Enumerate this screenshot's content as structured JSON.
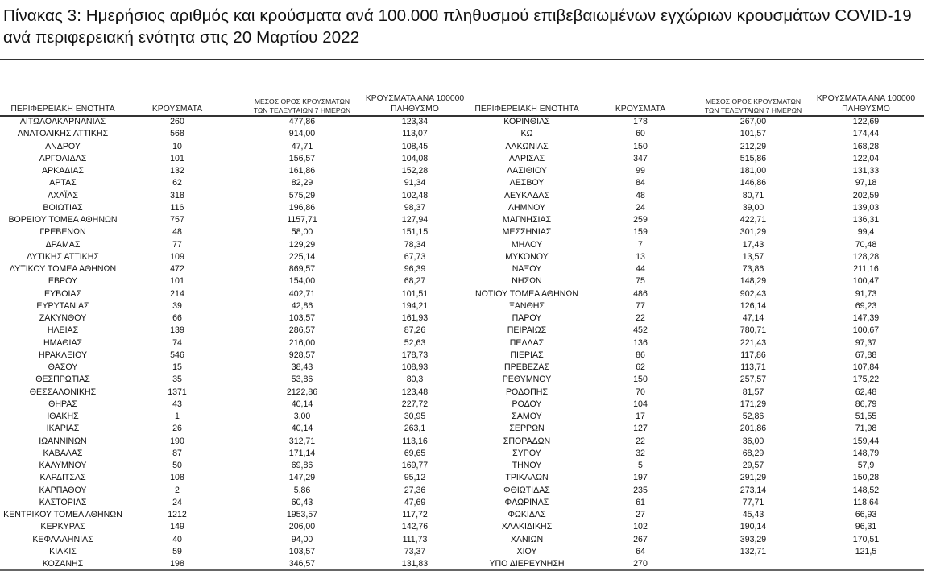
{
  "title": "Πίνακας 3:  Ημερήσιος αριθμός και κρούσματα ανά 100.000 πληθυσμού επιβεβαιωμένων εγχώριων κρουσμάτων COVID-19 ανά περιφερειακή ενότητα στις 20 Μαρτίου 2022",
  "headers": {
    "region": "ΠΕΡΙΦΕΡΕΙΑΚΗ ΕΝΟΤΗΤΑ",
    "cases": "ΚΡΟΥΣΜΑΤΑ",
    "avg_line1": "ΜΕΣΟΣ ΟΡΟΣ ΚΡΟΥΣΜΑΤΩΝ",
    "avg_line2": "ΤΩΝ ΤΕΛΕΥΤΑΙΩΝ 7 ΗΜΕΡΩΝ",
    "per100k_line1": "ΚΡΟΥΣΜΑΤΑ ΑΝΑ 100000",
    "per100k_line2": "ΠΛΗΘΥΣΜΟ"
  },
  "left_rows": [
    [
      "ΑΙΤΩΛΟΑΚΑΡΝΑΝΙΑΣ",
      "260",
      "477,86",
      "123,34"
    ],
    [
      "ΑΝΑΤΟΛΙΚΗΣ ΑΤΤΙΚΗΣ",
      "568",
      "914,00",
      "113,07"
    ],
    [
      "ΑΝΔΡΟΥ",
      "10",
      "47,71",
      "108,45"
    ],
    [
      "ΑΡΓΟΛΙΔΑΣ",
      "101",
      "156,57",
      "104,08"
    ],
    [
      "ΑΡΚΑΔΙΑΣ",
      "132",
      "161,86",
      "152,28"
    ],
    [
      "ΑΡΤΑΣ",
      "62",
      "82,29",
      "91,34"
    ],
    [
      "ΑΧΑΪΑΣ",
      "318",
      "575,29",
      "102,48"
    ],
    [
      "ΒΟΙΩΤΙΑΣ",
      "116",
      "196,86",
      "98,37"
    ],
    [
      "ΒΟΡΕΙΟΥ ΤΟΜΕΑ ΑΘΗΝΩΝ",
      "757",
      "1157,71",
      "127,94"
    ],
    [
      "ΓΡΕΒΕΝΩΝ",
      "48",
      "58,00",
      "151,15"
    ],
    [
      "ΔΡΑΜΑΣ",
      "77",
      "129,29",
      "78,34"
    ],
    [
      "ΔΥΤΙΚΗΣ ΑΤΤΙΚΗΣ",
      "109",
      "225,14",
      "67,73"
    ],
    [
      "ΔΥΤΙΚΟΥ ΤΟΜΕΑ ΑΘΗΝΩΝ",
      "472",
      "869,57",
      "96,39"
    ],
    [
      "ΕΒΡΟΥ",
      "101",
      "154,00",
      "68,27"
    ],
    [
      "ΕΥΒΟΙΑΣ",
      "214",
      "402,71",
      "101,51"
    ],
    [
      "ΕΥΡΥΤΑΝΙΑΣ",
      "39",
      "42,86",
      "194,21"
    ],
    [
      "ΖΑΚΥΝΘΟΥ",
      "66",
      "103,57",
      "161,93"
    ],
    [
      "ΗΛΕΙΑΣ",
      "139",
      "286,57",
      "87,26"
    ],
    [
      "ΗΜΑΘΙΑΣ",
      "74",
      "216,00",
      "52,63"
    ],
    [
      "ΗΡΑΚΛΕΙΟΥ",
      "546",
      "928,57",
      "178,73"
    ],
    [
      "ΘΑΣΟΥ",
      "15",
      "38,43",
      "108,93"
    ],
    [
      "ΘΕΣΠΡΩΤΙΑΣ",
      "35",
      "53,86",
      "80,3"
    ],
    [
      "ΘΕΣΣΑΛΟΝΙΚΗΣ",
      "1371",
      "2122,86",
      "123,48"
    ],
    [
      "ΘΗΡΑΣ",
      "43",
      "40,14",
      "227,72"
    ],
    [
      "ΙΘΑΚΗΣ",
      "1",
      "3,00",
      "30,95"
    ],
    [
      "ΙΚΑΡΙΑΣ",
      "26",
      "40,14",
      "263,1"
    ],
    [
      "ΙΩΑΝΝΙΝΩΝ",
      "190",
      "312,71",
      "113,16"
    ],
    [
      "ΚΑΒΑΛΑΣ",
      "87",
      "171,14",
      "69,65"
    ],
    [
      "ΚΑΛΥΜΝΟΥ",
      "50",
      "69,86",
      "169,77"
    ],
    [
      "ΚΑΡΔΙΤΣΑΣ",
      "108",
      "147,29",
      "95,12"
    ],
    [
      "ΚΑΡΠΑΘΟΥ",
      "2",
      "5,86",
      "27,36"
    ],
    [
      "ΚΑΣΤΟΡΙΑΣ",
      "24",
      "60,43",
      "47,69"
    ],
    [
      "ΚΕΝΤΡΙΚΟΥ ΤΟΜΕΑ ΑΘΗΝΩΝ",
      "1212",
      "1953,57",
      "117,72"
    ],
    [
      "ΚΕΡΚΥΡΑΣ",
      "149",
      "206,00",
      "142,76"
    ],
    [
      "ΚΕΦΑΛΛΗΝΙΑΣ",
      "40",
      "94,00",
      "111,73"
    ],
    [
      "ΚΙΛΚΙΣ",
      "59",
      "103,57",
      "73,37"
    ],
    [
      "ΚΟΖΑΝΗΣ",
      "198",
      "346,57",
      "131,83"
    ]
  ],
  "right_rows": [
    [
      "ΚΟΡΙΝΘΙΑΣ",
      "178",
      "267,00",
      "122,69"
    ],
    [
      "ΚΩ",
      "60",
      "101,57",
      "174,44"
    ],
    [
      "ΛΑΚΩΝΙΑΣ",
      "150",
      "212,29",
      "168,28"
    ],
    [
      "ΛΑΡΙΣΑΣ",
      "347",
      "515,86",
      "122,04"
    ],
    [
      "ΛΑΣΙΘΙΟΥ",
      "99",
      "181,00",
      "131,33"
    ],
    [
      "ΛΕΣΒΟΥ",
      "84",
      "146,86",
      "97,18"
    ],
    [
      "ΛΕΥΚΑΔΑΣ",
      "48",
      "80,71",
      "202,59"
    ],
    [
      "ΛΗΜΝΟΥ",
      "24",
      "39,00",
      "139,03"
    ],
    [
      "ΜΑΓΝΗΣΙΑΣ",
      "259",
      "422,71",
      "136,31"
    ],
    [
      "ΜΕΣΣΗΝΙΑΣ",
      "159",
      "301,29",
      "99,4"
    ],
    [
      "ΜΗΛΟΥ",
      "7",
      "17,43",
      "70,48"
    ],
    [
      "ΜΥΚΟΝΟΥ",
      "13",
      "13,57",
      "128,28"
    ],
    [
      "ΝΑΞΟΥ",
      "44",
      "73,86",
      "211,16"
    ],
    [
      "ΝΗΣΩΝ",
      "75",
      "148,29",
      "100,47"
    ],
    [
      "ΝΟΤΙΟΥ ΤΟΜΕΑ ΑΘΗΝΩΝ",
      "486",
      "902,43",
      "91,73"
    ],
    [
      "ΞΑΝΘΗΣ",
      "77",
      "126,14",
      "69,23"
    ],
    [
      "ΠΑΡΟΥ",
      "22",
      "47,14",
      "147,39"
    ],
    [
      "ΠΕΙΡΑΙΩΣ",
      "452",
      "780,71",
      "100,67"
    ],
    [
      "ΠΕΛΛΑΣ",
      "136",
      "221,43",
      "97,37"
    ],
    [
      "ΠΙΕΡΙΑΣ",
      "86",
      "117,86",
      "67,88"
    ],
    [
      "ΠΡΕΒΕΖΑΣ",
      "62",
      "113,71",
      "107,84"
    ],
    [
      "ΡΕΘΥΜΝΟΥ",
      "150",
      "257,57",
      "175,22"
    ],
    [
      "ΡΟΔΟΠΗΣ",
      "70",
      "81,57",
      "62,48"
    ],
    [
      "ΡΟΔΟΥ",
      "104",
      "171,29",
      "86,79"
    ],
    [
      "ΣΑΜΟΥ",
      "17",
      "52,86",
      "51,55"
    ],
    [
      "ΣΕΡΡΩΝ",
      "127",
      "201,86",
      "71,98"
    ],
    [
      "ΣΠΟΡΑΔΩΝ",
      "22",
      "36,00",
      "159,44"
    ],
    [
      "ΣΥΡΟΥ",
      "32",
      "68,29",
      "148,79"
    ],
    [
      "ΤΗΝΟΥ",
      "5",
      "29,57",
      "57,9"
    ],
    [
      "ΤΡΙΚΑΛΩΝ",
      "197",
      "291,29",
      "150,28"
    ],
    [
      "ΦΘΙΩΤΙΔΑΣ",
      "235",
      "273,14",
      "148,52"
    ],
    [
      "ΦΛΩΡΙΝΑΣ",
      "61",
      "77,71",
      "118,64"
    ],
    [
      "ΦΩΚΙΔΑΣ",
      "27",
      "45,43",
      "66,93"
    ],
    [
      "ΧΑΛΚΙΔΙΚΗΣ",
      "102",
      "190,14",
      "96,31"
    ],
    [
      "ΧΑΝΙΩΝ",
      "267",
      "393,29",
      "170,51"
    ],
    [
      "ΧΙΟΥ",
      "64",
      "132,71",
      "121,5"
    ],
    [
      "ΥΠΟ ΔΙΕΡΕΥΝΗΣΗ",
      "270",
      "",
      ""
    ]
  ]
}
